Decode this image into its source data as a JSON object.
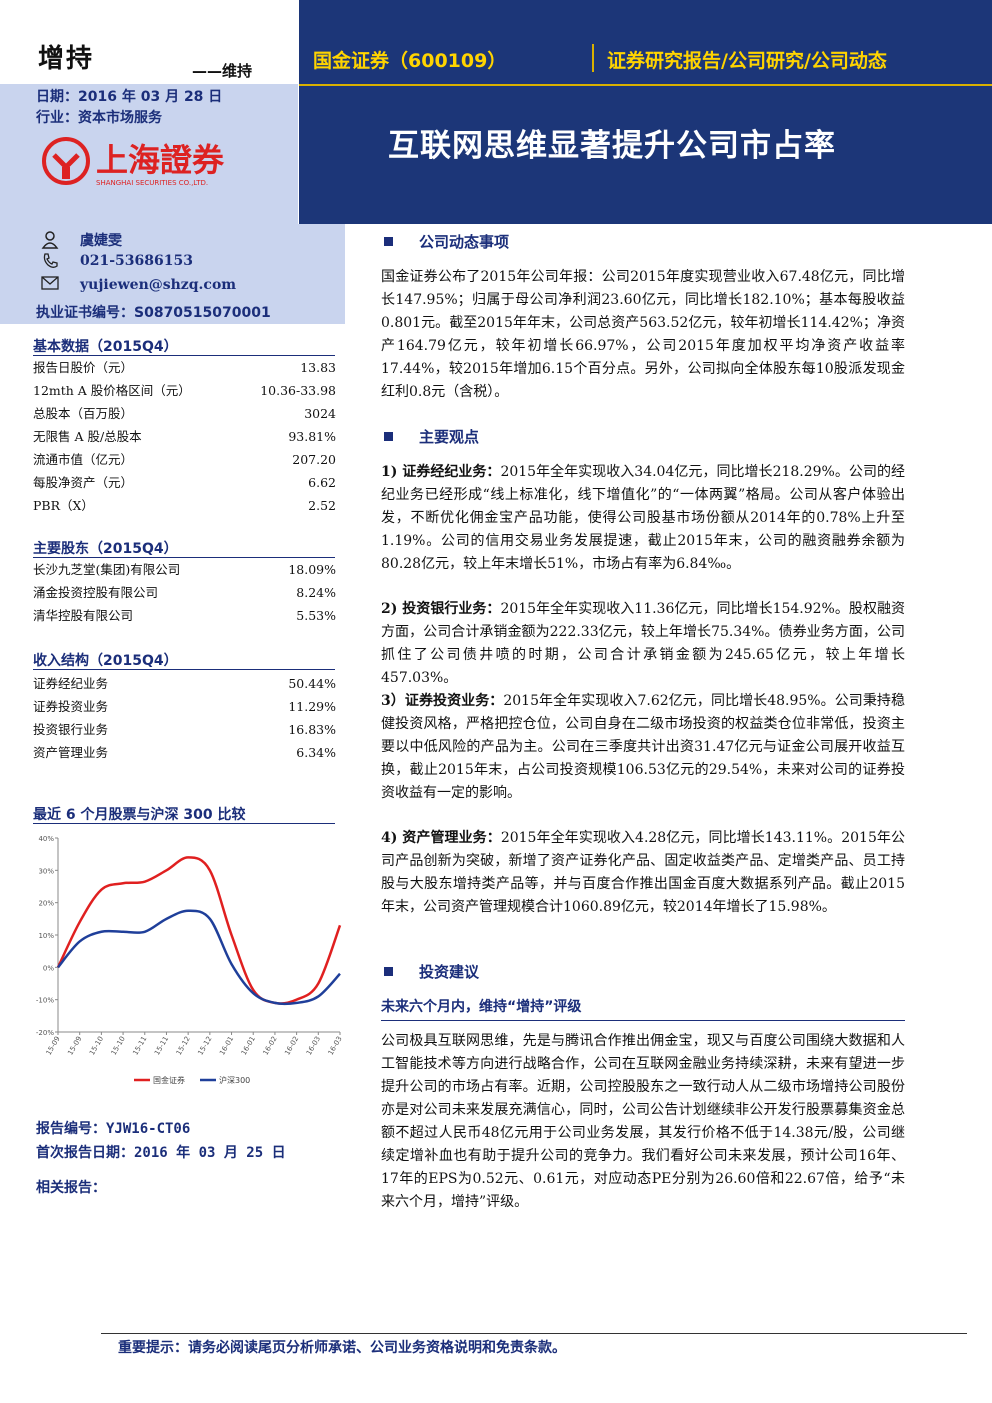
{
  "rating": "增持",
  "rating_sub": "——维持",
  "date_line": "日期：2016 年 03 月 28 日",
  "industry_line": "行业：资本市场服务",
  "logo": {
    "name": "上海證券",
    "english": "SHANGHAI SECURITIES CO.,LTD."
  },
  "header": {
    "company": "国金证券（600109）",
    "report_type": "证券研究报告/公司研究/公司动态",
    "title": "互联网思维显著提升公司市占率"
  },
  "analyst": {
    "name": "虞婕雯",
    "phone": "021-53686153",
    "email": "yujiewen@shzq.com",
    "cert": "执业证书编号：S0870515070001",
    "icons": [
      "person-icon",
      "phone-icon",
      "envelope-icon"
    ]
  },
  "basic_data": {
    "title": "基本数据（2015Q4）",
    "rows": [
      {
        "k": "报告日股价（元）",
        "v": "13.83"
      },
      {
        "k": "12mth A 股价格区间（元）",
        "v": "10.36-33.98"
      },
      {
        "k": "总股本（百万股）",
        "v": "3024"
      },
      {
        "k": "无限售 A 股/总股本",
        "v": "93.81%"
      },
      {
        "k": "流通市值（亿元）",
        "v": "207.20"
      },
      {
        "k": "每股净资产（元）",
        "v": "6.62"
      },
      {
        "k": "PBR（X）",
        "v": "2.52"
      }
    ]
  },
  "shareholders": {
    "title": "主要股东（2015Q4）",
    "rows": [
      {
        "k": "长沙九芝堂(集团)有限公司",
        "v": "18.09%"
      },
      {
        "k": "涌金投资控股有限公司",
        "v": "8.24%"
      },
      {
        "k": "清华控股有限公司",
        "v": "5.53%"
      }
    ]
  },
  "income": {
    "title": "收入结构（2015Q4）",
    "rows": [
      {
        "k": "证券经纪业务",
        "v": "50.44%"
      },
      {
        "k": "证券投资业务",
        "v": "11.29%"
      },
      {
        "k": "投资银行业务",
        "v": "16.83%"
      },
      {
        "k": "资产管理业务",
        "v": "6.34%"
      }
    ]
  },
  "chart_section_title": "最近 6 个月股票与沪深 300 比较",
  "chart_data": {
    "type": "line",
    "x": [
      "15-09",
      "15-09",
      "15-10",
      "15-10",
      "15-11",
      "15-11",
      "15-12",
      "15-12",
      "16-01",
      "16-01",
      "16-02",
      "16-02",
      "16-03",
      "16-03"
    ],
    "ylim": [
      -20,
      40
    ],
    "yticks": [
      "40%",
      "30%",
      "20%",
      "10%",
      "0%",
      "-10%",
      "-20%"
    ],
    "series": [
      {
        "name": "国金证券",
        "color": "#e02020",
        "values": [
          0,
          14,
          24,
          26,
          26.5,
          30,
          34,
          30,
          10,
          -7,
          -11,
          -10,
          -5,
          13
        ]
      },
      {
        "name": "沪深300",
        "color": "#1f3f9a",
        "values": [
          0,
          8,
          11,
          11,
          11,
          15,
          17.5,
          15,
          1,
          -8,
          -11,
          -11,
          -9,
          -2
        ]
      }
    ]
  },
  "report_no": "报告编号：YJW16-CT06",
  "first_date": "首次报告日期：2016 年 03 月 25 日",
  "related": "相关报告：",
  "sections": {
    "s1_title": "公司动态事项",
    "s1_text": "国金证券公布了2015年公司年报：公司2015年度实现营业收入67.48亿元，同比增长147.95%；归属于母公司净利润23.60亿元，同比增长182.10%；基本每股收益0.801元。截至2015年年末，公司总资产563.52亿元，较年初增长114.42%；净资产164.79亿元，较年初增长66.97%，公司2015年度加权平均净资产收益率17.44%，较2015年增加6.15个百分点。另外，公司拟向全体股东每10股派发现金红利0.8元（含税）。",
    "s2_title": "主要观点",
    "p1_head": "1) 证券经纪业务：",
    "p1_text": "2015年全年实现收入34.04亿元，同比增长218.29%。公司的经纪业务已经形成“线上标准化，线下增值化”的“一体两翼”格局。公司从客户体验出发，不断优化佣金宝产品功能，使得公司股基市场份额从2014年的0.78%上升至1.19%。公司的信用交易业务发展提速，截止2015年末，公司的融资融券余额为80.28亿元，较上年末增长51%，市场占有率为6.84‰。",
    "p2_head": "2) 投资银行业务：",
    "p2_text": "2015年全年实现收入11.36亿元，同比增长154.92%。股权融资方面，公司合计承销金额为222.33亿元，较上年增长75.34%。债券业务方面，公司抓住了公司债井喷的时期，公司合计承销金额为245.65亿元，较上年增长457.03%。",
    "p3_head": "3）证券投资业务：",
    "p3_text": "2015年全年实现收入7.62亿元，同比增长48.95%。公司秉持稳健投资风格，严格把控仓位，公司自身在二级市场投资的权益类仓位非常低，投资主要以中低风险的产品为主。公司在三季度共计出资31.47亿元与证金公司展开收益互换，截止2015年末，占公司投资规模106.53亿元的29.54%，未来对公司的证券投资收益有一定的影响。",
    "p4_head": "4) 资产管理业务：",
    "p4_text": "2015年全年实现收入4.28亿元，同比增长143.11%。2015年公司产品创新为突破，新增了资产证券化产品、固定收益类产品、定增类产品、员工持股与大股东增持类产品等，并与百度合作推出国金百度大数据系列产品。截止2015年末，公司资产管理规模合计1060.89亿元，较2014年增长了15.98%。",
    "s3_title": "投资建议",
    "advice_rating": "未来六个月内，维持“增持”评级",
    "s3_text": "公司极具互联网思维，先是与腾讯合作推出佣金宝，现又与百度公司围绕大数据和人工智能技术等方向进行战略合作，公司在互联网金融业务持续深耕，未来有望进一步提升公司的市场占有率。近期，公司控股股东之一致行动人从二级市场增持公司股份亦是对公司未来发展充满信心，同时，公司公告计划继续非公开发行股票募集资金总额不超过人民币48亿元用于公司业务发展，其发行价格不低于14.38元/股，公司继续定增补血也有助于提升公司的竞争力。我们看好公司未来发展，预计公司16年、17年的EPS为0.52元、0.61元，对应动态PE分别为26.60倍和22.67倍，给予“未来六个月，增持”评级。"
  },
  "footer": "重要提示：请务必阅读尾页分析师承诺、公司业务资格说明和免责条款。"
}
